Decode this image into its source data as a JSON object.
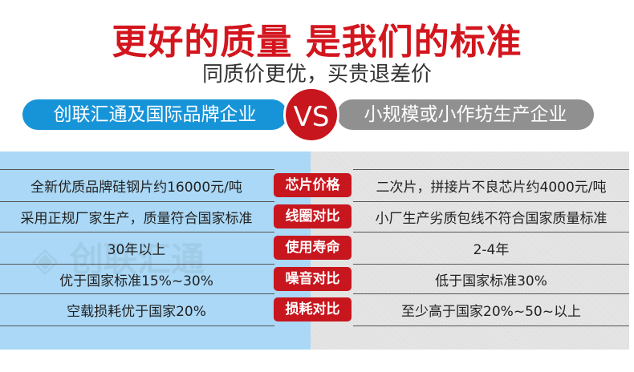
{
  "title": "更好的质量  是我们的标准",
  "subtitle": "同质价更优，买贵退差价",
  "left_brand": "创联汇通及国际品牌企业",
  "vs": "VS",
  "right_brand": "小规模或小作坊生产企业",
  "watermark": "创联汇通",
  "rows": [
    {
      "left": "全新优质品牌硅钢片约16000元/吨",
      "label": "芯片价格",
      "right": "二次片，拼接片不良芯片约4000元/吨"
    },
    {
      "left": "采用正规厂家生产，质量符合国家标准",
      "label": "线圈对比",
      "right": "小厂生产劣质包线不符合国家质量标准"
    },
    {
      "left": "30年以上",
      "label": "使用寿命",
      "right": "2-4年"
    },
    {
      "left": "优于国家标准15%~30%",
      "label": "噪音对比",
      "right": "低于国家标准30%"
    },
    {
      "left": "空载损耗优于国家20%",
      "label": "损耗对比",
      "right": "至少高于国家20%~50~以上"
    }
  ],
  "colors": {
    "red": "#c8161e",
    "blue": "#1794d8",
    "light_blue": "#aad8f6",
    "gray": "#909090"
  }
}
